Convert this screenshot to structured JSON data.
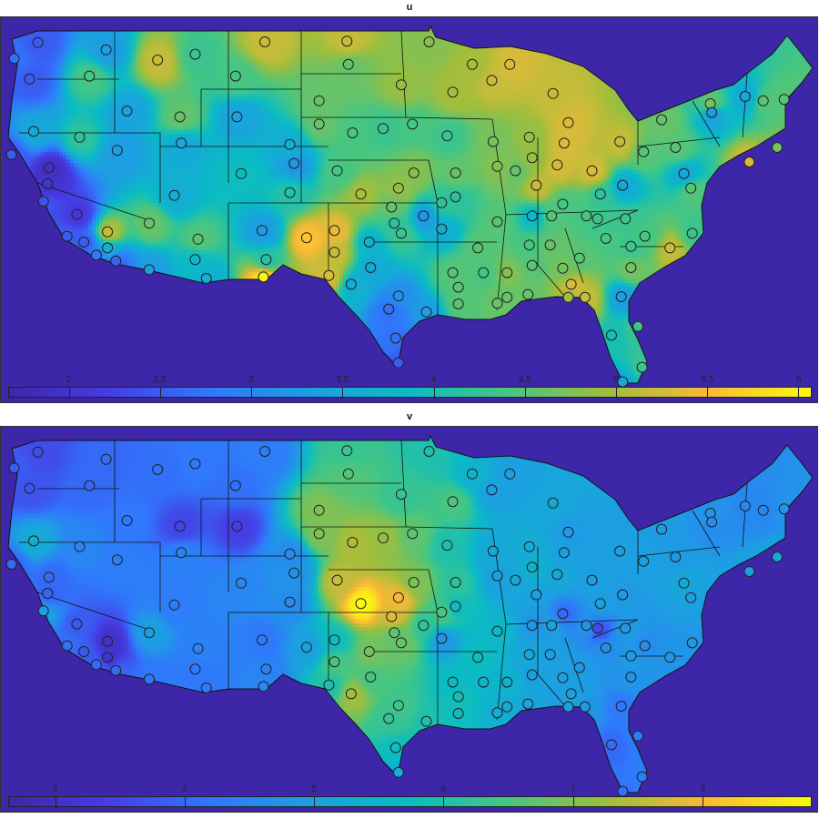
{
  "chart_data": [
    {
      "type": "heatmap",
      "title": "u",
      "colorbar": {
        "min": 1.67,
        "max": 6.07,
        "ticks": [
          2,
          2.5,
          3,
          3.5,
          4,
          4.5,
          5,
          5.5,
          6
        ],
        "tick_labels": [
          "2",
          "2.5",
          "3",
          "3.5",
          "4",
          "4.5",
          "5",
          "5.5",
          "6"
        ]
      },
      "colormap": "parula"
    },
    {
      "type": "heatmap",
      "title": "v",
      "colorbar": {
        "min": 2.64,
        "max": 8.84,
        "ticks": [
          3,
          4,
          5,
          6,
          7,
          8
        ],
        "tick_labels": [
          "3",
          "4",
          "5",
          "6",
          "7",
          "8"
        ]
      },
      "colormap": "parula"
    }
  ],
  "stations_fields": [
    "lon",
    "lat",
    "u",
    "v"
  ],
  "stations": [
    [
      -122.5,
      48.2,
      2.5,
      3.6
    ],
    [
      -124.2,
      47.1,
      2.7,
      3.8
    ],
    [
      -123.1,
      45.7,
      2.5,
      3.7
    ],
    [
      -122.8,
      42.1,
      3.5,
      5.3
    ],
    [
      -124.4,
      40.5,
      2.5,
      4.0
    ],
    [
      -121.7,
      39.6,
      1.9,
      4.0
    ],
    [
      -121.8,
      38.5,
      2.0,
      3.9
    ],
    [
      -122.1,
      37.3,
      2.4,
      5.0
    ],
    [
      -119.7,
      36.4,
      2.1,
      3.8
    ],
    [
      -120.4,
      34.9,
      2.5,
      4.1
    ],
    [
      -119.2,
      34.5,
      2.5,
      3.8
    ],
    [
      -117.5,
      35.2,
      5.2,
      3.0
    ],
    [
      -117.5,
      34.1,
      3.6,
      3.1
    ],
    [
      -118.3,
      33.6,
      2.8,
      4.0
    ],
    [
      -116.9,
      33.2,
      2.6,
      4.0
    ],
    [
      -119.5,
      41.7,
      4.2,
      4.5
    ],
    [
      -116.8,
      40.8,
      3.3,
      4.3
    ],
    [
      -117.6,
      47.7,
      3.3,
      4.0
    ],
    [
      -116.1,
      43.5,
      3.4,
      4.2
    ],
    [
      -114.5,
      35.8,
      4.6,
      5.0
    ],
    [
      -114.5,
      32.6,
      3.3,
      4.2
    ],
    [
      -112.3,
      43.1,
      4.6,
      3.5
    ],
    [
      -112.2,
      41.3,
      3.5,
      4.4
    ],
    [
      -112.7,
      37.7,
      3.6,
      4.3
    ],
    [
      -111.0,
      34.7,
      4.5,
      4.4
    ],
    [
      -111.2,
      33.3,
      3.8,
      4.2
    ],
    [
      -110.4,
      32.0,
      3.6,
      4.2
    ],
    [
      -106.2,
      48.25,
      5.2,
      4.3
    ],
    [
      -111.2,
      47.4,
      4.3,
      4.2
    ],
    [
      -113.9,
      47.0,
      5.2,
      4.1
    ],
    [
      -118.8,
      45.9,
      4.4,
      4.0
    ],
    [
      -108.3,
      45.9,
      4.4,
      4.1
    ],
    [
      -108.2,
      43.1,
      3.4,
      3.4
    ],
    [
      -104.4,
      41.2,
      3.6,
      4.6
    ],
    [
      -104.1,
      39.9,
      3.2,
      4.7
    ],
    [
      -107.9,
      39.2,
      3.9,
      4.5
    ],
    [
      -104.4,
      37.9,
      4.1,
      4.6
    ],
    [
      -106.4,
      35.3,
      3.3,
      4.2
    ],
    [
      -106.1,
      33.3,
      4.1,
      4.4
    ],
    [
      -106.3,
      32.1,
      6.0,
      4.5
    ],
    [
      -103.2,
      34.8,
      5.6,
      5.0
    ],
    [
      -101.2,
      35.3,
      5.4,
      5.8
    ],
    [
      -101.2,
      33.8,
      5.2,
      6.5
    ],
    [
      -101.6,
      32.2,
      5.3,
      6.0
    ],
    [
      -100.0,
      31.6,
      3.6,
      7.3
    ],
    [
      -98.6,
      32.75,
      3.5,
      6.5
    ],
    [
      -98.7,
      34.5,
      3.7,
      6.9
    ],
    [
      -96.9,
      35.8,
      4.2,
      6.7
    ],
    [
      -96.6,
      30.8,
      3.1,
      6.4
    ],
    [
      -97.3,
      29.9,
      2.7,
      6.3
    ],
    [
      -94.6,
      29.7,
      3.3,
      6.0
    ],
    [
      -96.8,
      27.9,
      2.7,
      5.8
    ],
    [
      -96.6,
      26.2,
      2.5,
      5.3
    ],
    [
      -94.8,
      36.3,
      3.2,
      6.2
    ],
    [
      -93.5,
      35.4,
      3.6,
      4.8
    ],
    [
      -93.5,
      37.2,
      4.2,
      6.5
    ],
    [
      -96.4,
      35.1,
      4.3,
      6.8
    ],
    [
      -100.3,
      48.3,
      5.2,
      6.3
    ],
    [
      -100.2,
      46.7,
      4.6,
      6.6
    ],
    [
      -102.3,
      44.2,
      4.6,
      7.0
    ],
    [
      -99.9,
      42.0,
      4.4,
      7.4
    ],
    [
      -102.3,
      42.6,
      4.6,
      7.0
    ],
    [
      -97.7,
      42.3,
      4.3,
      7.2
    ],
    [
      -101.0,
      39.4,
      4.4,
      7.6
    ],
    [
      -99.3,
      37.8,
      5.0,
      8.8
    ],
    [
      -96.6,
      38.2,
      4.9,
      8.0
    ],
    [
      -95.5,
      39.25,
      4.8,
      7.0
    ],
    [
      -97.1,
      36.9,
      4.6,
      7.8
    ],
    [
      -94.4,
      48.25,
      4.8,
      6.0
    ],
    [
      -96.4,
      45.3,
      4.9,
      6.3
    ],
    [
      -92.7,
      44.8,
      5.0,
      6.5
    ],
    [
      -95.6,
      42.6,
      4.4,
      6.7
    ],
    [
      -93.1,
      41.8,
      4.3,
      6.0
    ],
    [
      -92.5,
      39.25,
      4.6,
      6.2
    ],
    [
      -92.5,
      37.6,
      4.2,
      5.8
    ],
    [
      -91.3,
      46.7,
      5.0,
      5.5
    ],
    [
      -89.9,
      45.6,
      5.2,
      5.0
    ],
    [
      -88.6,
      46.7,
      5.3,
      5.0
    ],
    [
      -89.8,
      41.4,
      4.7,
      5.2
    ],
    [
      -89.5,
      39.7,
      4.8,
      5.0
    ],
    [
      -88.2,
      39.4,
      4.6,
      5.2
    ],
    [
      -87.2,
      41.7,
      4.9,
      5.3
    ],
    [
      -87.0,
      40.3,
      4.9,
      5.5
    ],
    [
      -86.7,
      38.4,
      5.2,
      5.0
    ],
    [
      -85.2,
      39.8,
      5.3,
      5.2
    ],
    [
      -84.7,
      41.3,
      5.3,
      5.0
    ],
    [
      -82.7,
      39.4,
      5.3,
      5.0
    ],
    [
      -84.4,
      42.7,
      5.3,
      4.9
    ],
    [
      -85.5,
      44.7,
      5.2,
      5.2
    ],
    [
      -80.7,
      41.4,
      5.2,
      5.0
    ],
    [
      -79.0,
      40.7,
      4.5,
      5.0
    ],
    [
      -76.7,
      41.0,
      4.5,
      4.9
    ],
    [
      -77.7,
      42.9,
      4.6,
      4.9
    ],
    [
      -74.2,
      44.0,
      4.7,
      4.8
    ],
    [
      -71.7,
      44.5,
      3.5,
      4.5
    ],
    [
      -74.1,
      43.4,
      3.3,
      4.6
    ],
    [
      -70.4,
      44.2,
      4.5,
      4.5
    ],
    [
      -68.9,
      44.3,
      4.5,
      4.8
    ],
    [
      -69.4,
      41.0,
      4.7,
      5.2
    ],
    [
      -71.4,
      40.0,
      5.3,
      5.0
    ],
    [
      -76.1,
      39.2,
      3.5,
      5.2
    ],
    [
      -75.6,
      38.2,
      4.5,
      5.0
    ],
    [
      -80.5,
      38.4,
      3.5,
      4.9
    ],
    [
      -82.1,
      37.8,
      4.2,
      5.0
    ],
    [
      -84.8,
      37.1,
      4.4,
      4.0
    ],
    [
      -85.6,
      36.3,
      4.5,
      5.0
    ],
    [
      -87.0,
      36.3,
      3.8,
      4.8
    ],
    [
      -83.1,
      36.3,
      4.4,
      4.8
    ],
    [
      -82.3,
      36.1,
      4.3,
      3.6
    ],
    [
      -80.3,
      36.1,
      4.3,
      4.9
    ],
    [
      -78.9,
      34.9,
      4.4,
      4.6
    ],
    [
      -77.1,
      34.1,
      5.2,
      4.8
    ],
    [
      -75.5,
      35.1,
      4.3,
      4.8
    ],
    [
      -79.9,
      34.2,
      4.3,
      4.9
    ],
    [
      -81.7,
      34.75,
      4.4,
      4.7
    ],
    [
      -79.9,
      32.75,
      4.7,
      4.8
    ],
    [
      -80.6,
      30.75,
      3.3,
      4.2
    ],
    [
      -81.3,
      28.1,
      4.0,
      4.0
    ],
    [
      -79.4,
      28.7,
      4.3,
      4.3
    ],
    [
      -79.1,
      25.9,
      4.3,
      4.3
    ],
    [
      -80.5,
      24.9,
      3.5,
      4.1
    ],
    [
      -83.2,
      30.7,
      5.2,
      4.8
    ],
    [
      -84.4,
      30.7,
      5.0,
      5.0
    ],
    [
      -84.2,
      31.6,
      5.3,
      5.0
    ],
    [
      -84.8,
      32.7,
      4.7,
      5.0
    ],
    [
      -85.7,
      34.3,
      4.6,
      5.0
    ],
    [
      -83.6,
      33.4,
      4.5,
      4.9
    ],
    [
      -87.2,
      34.3,
      4.4,
      5.2
    ],
    [
      -87.0,
      32.9,
      4.5,
      5.0
    ],
    [
      -87.3,
      30.9,
      4.6,
      5.1
    ],
    [
      -88.8,
      32.4,
      4.8,
      5.5
    ],
    [
      -88.8,
      30.7,
      4.6,
      5.3
    ],
    [
      -90.5,
      32.4,
      4.4,
      5.6
    ],
    [
      -90.9,
      34.1,
      4.5,
      5.8
    ],
    [
      -89.5,
      35.9,
      4.5,
      5.6
    ],
    [
      -92.7,
      32.4,
      4.5,
      5.7
    ],
    [
      -92.3,
      31.4,
      4.5,
      5.9
    ],
    [
      -92.3,
      30.25,
      4.5,
      5.8
    ],
    [
      -89.5,
      30.3,
      4.6,
      5.4
    ]
  ]
}
